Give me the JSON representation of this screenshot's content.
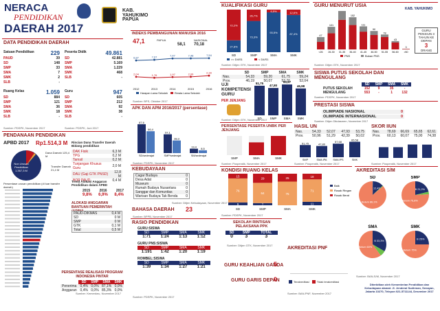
{
  "header": {
    "title1": "NERACA",
    "title2": "PENDIDIKAN",
    "title3": "DAERAH 2017",
    "region_name": "KAB. YAHUKIMO",
    "province": "PAPUA",
    "region_tag": "KAB. YAHUKIMO"
  },
  "data_pendidikan": {
    "title": "DATA PENDIDIKAN DAERAH",
    "satuan": {
      "label": "Satuan Pendidikan",
      "total": "229",
      "rows": [
        [
          "PAUD",
          "39"
        ],
        [
          "SD",
          "148"
        ],
        [
          "SMP",
          "33"
        ],
        [
          "SMA",
          "7"
        ],
        [
          "SMK",
          "2"
        ],
        [
          "SLB",
          "-"
        ]
      ]
    },
    "peserta": {
      "label": "Peserta Didik",
      "total": "49.861",
      "rows": [
        [
          "SD",
          "42.881"
        ],
        [
          "SMP",
          "5.169"
        ],
        [
          "SMA",
          "1.229"
        ],
        [
          "SMK",
          "468"
        ],
        [
          "SLB",
          "-"
        ]
      ]
    },
    "ruang": {
      "label": "Ruang Kelas",
      "total": "1.059",
      "rows": [
        [
          "SD",
          "884"
        ],
        [
          "SMP",
          "121"
        ],
        [
          "SMA",
          "36"
        ],
        [
          "SMK",
          "18"
        ],
        [
          "SLB",
          "-"
        ]
      ]
    },
    "guru": {
      "label": "Guru",
      "total": "947",
      "rows": [
        [
          "SD",
          "605"
        ],
        [
          "SMP",
          "212"
        ],
        [
          "SMA",
          "92"
        ],
        [
          "SMK",
          "38"
        ],
        [
          "SLB",
          "-"
        ]
      ]
    },
    "source1": "Sumber: PDSPK, November 2017",
    "source2": "Sumber: PDSPK, Juni 2017"
  },
  "pendanaan": {
    "title": "PENDANAAN PENDIDIKAN",
    "apbd_label": "APBD 2017",
    "apbd_value": "Rp1.514,3 M",
    "pie_labels": {
      "non_urusan": "Non Urusan Pendidikan 1.367,3 M",
      "dana_daerah": "Dana Daerah 125,4 M",
      "transfer": "Transfer Daerah 21,4 M"
    },
    "rincian_title": "Rincian Dana Transfer Daerah Bidang pendidikan",
    "rincian": [
      [
        "DAK Fisik",
        "6,3 M"
      ],
      [
        "TPG",
        "0,2 M"
      ],
      [
        "Tamsil",
        "0,2 M"
      ],
      [
        "Tunjangan Khusus Guru",
        "2,0 M"
      ],
      [
        "DAU (Gaji GTK PNSD)",
        "12,8 M"
      ],
      [
        "BOP PAUD",
        "0,4 M"
      ]
    ],
    "persentase_title": "Persentase urusan pendidikan (di luar transfer daerah)",
    "trend_title": "Trend Alokasi Anggaran Pendidikan dalam APBD",
    "trend_years": [
      "2015",
      "2016",
      "2017"
    ],
    "trend_values": [
      "9,8%",
      "6,9%",
      "8,4%"
    ],
    "alokasi_title": "ALOKASI ANGGARAN BANTUAN PEMERINTAH (APBN)",
    "alokasi": [
      [
        "PAUD-DIKMAS",
        "0,4 M"
      ],
      [
        "SD",
        "0 M"
      ],
      [
        "SMP",
        "0 M"
      ],
      [
        "GTK",
        "0,1 M"
      ],
      [
        "Total",
        "0,5 M"
      ]
    ],
    "pip_title": "PERSENTASE REALISASI PROGRAM INDONESIA PINTAR",
    "pip_header": [
      "SD",
      "SMP",
      "SMA",
      "SMK"
    ],
    "pip_rows": [
      [
        "Penerima",
        "0,4%",
        "0,0%",
        "87,1%",
        "0,0%"
      ],
      [
        "Anggaran",
        "0,4%",
        "0,0%",
        "85,3%",
        "0,0%"
      ]
    ],
    "source": "Sumber: Kemenkeu, November 2017"
  },
  "ipm": {
    "title": "INDEKS PEMBANGUNAN MANUSIA 2016",
    "value": "47,1",
    "papua_label": "PAPUA",
    "papua_value": "58,1",
    "nasional_label": "NASIONAL",
    "nasional_value": "70,18",
    "source": "Sumber: BPS, Oktober 2017"
  },
  "apk": {
    "title": "APK DAN APM 2016/2017 (persentase)",
    "source": "Sumber: PDSPK, November 2017"
  },
  "kebudayaan": {
    "title": "KEBUDAYAAN",
    "rows": [
      [
        "Cagar Budaya",
        "0"
      ],
      [
        "Desa Adat",
        "0"
      ],
      [
        "Museum",
        "0"
      ],
      [
        "Rumah Budaya Nusantara",
        "0"
      ],
      [
        "Sanggar dan Komunitas",
        "0"
      ],
      [
        "Warisan Budaya Tak Benda",
        "0"
      ]
    ],
    "source": "Sumber: Ditjen Kebudayaan, November 2017"
  },
  "bahasa": {
    "title": "BAHASA DAERAH",
    "value": "23",
    "source": "Sumber: BPPB, November 2017"
  },
  "rasio": {
    "title": "RASIO PENDIDIKAN",
    "guru_siswa": "GURU:SISWA",
    "header": [
      "SD",
      "SMP",
      "SMA",
      "SMK"
    ],
    "guru_siswa_vals": [
      "1:71",
      "1:24",
      "1:13",
      "1:12"
    ],
    "pns_title": "GURU PNS:SISWA",
    "pns_vals": [
      "1:191",
      "1:42",
      "1:20",
      "1:19"
    ],
    "rombel_title": "ROMBEL:SISWA",
    "rombel_vals": [
      "1:39",
      "1:34",
      "1:27",
      "1:21"
    ],
    "source": "Sumber: PDSPK, November 2017"
  },
  "kualifikasi": {
    "title": "KUALIFIKASI GURU",
    "source": "Sumber: Ditjen GTK, November 2017"
  },
  "usia": {
    "title": "GURU MENURUT USIA",
    "note_label": "GURU PENSIUN 3 TAHUN KE DEPAN",
    "note_value": "3",
    "note_unit": "ORANG",
    "source": "Sumber: Ditjen GTK, November 2017"
  },
  "un": {
    "title": "UJI KOMPETENSI GURU",
    "subtitle": "PER JENJANG",
    "header": [
      "SD",
      "SMP",
      "SMA",
      "SMK"
    ],
    "nas_label": "Nas.",
    "nas": [
      "54,33",
      "59,20",
      "61,75",
      "59,24"
    ],
    "prov_label": "Prov.",
    "prov": [
      "46,19",
      "50,07",
      "53,76",
      "52,04"
    ],
    "values": [
      "51,75",
      "47,80",
      "53,97",
      "46,98"
    ],
    "source": "Sumber: Ditjen GTK, November 2017"
  },
  "putus": {
    "title": "SISWA PUTUS SEKOLAH DAN MENGULANG",
    "header": [
      "SD",
      "SMP",
      "SMA",
      "SMK"
    ],
    "rows": [
      [
        "PUTUS SEKOLAH",
        "152",
        "9",
        "35",
        "-"
      ],
      [
        "MENGULANG",
        "553",
        "-",
        "1",
        "132"
      ]
    ],
    "source": "Sumber: PDSPK, November 2017"
  },
  "prestasi": {
    "title": "PRESTASI SISWA",
    "rows": [
      [
        "OLIMPIADE NASIONAL",
        "0"
      ],
      [
        "OLIMPIADE INTERNASIONAL",
        "0"
      ]
    ],
    "source": "Sumber: Ditjen Dikdasmen, November 2017"
  },
  "unbk": {
    "title": "PERSENTASE PESERTA UNBK PER JENJANG",
    "source": "Sumber: Puspendik, November 2017"
  },
  "hasil_un": {
    "title": "HASIL UN",
    "nas_label": "Nas.",
    "nas": [
      "54,33",
      "52,07",
      "47,93",
      "53,75"
    ],
    "prov_label": "Prov.",
    "prov": [
      "50,96",
      "51,29",
      "42,39",
      "50,02"
    ],
    "values": [
      "51,75",
      "47,80",
      "57,68",
      "65,58"
    ],
    "source": "Sumber: Puspendik, November 2017"
  },
  "skor_iiun": {
    "title": "SKOR IIUN",
    "nas_label": "Nas.",
    "nas": [
      "78,69",
      "66,69",
      "65,65",
      "62,61"
    ],
    "prov_label": "Prov.",
    "prov": [
      "60,13",
      "60,07",
      "75,00",
      "74,38"
    ],
    "source": "Sumber: Puspendik, November 2017"
  },
  "kondisi": {
    "title": "KONDISI RUANG KELAS",
    "source": "Sumber: PDSPK, November 2017"
  },
  "akreditasi": {
    "title": "AKREDITASI S/M",
    "source": "Sumber: BAN-S/M, November 2017"
  },
  "ppk": {
    "title": "SEKOLAH RINTISAN PELAKSANA PPK",
    "header": [
      "SD",
      "SMP",
      "TOTAL"
    ],
    "values": [
      "0",
      "3",
      "3"
    ],
    "source": "Sumber: Ditjen GTK, November 2017"
  },
  "akreditasi_pnf": {
    "title": "AKREDITASI PNF",
    "legend1": "Terakreditasi",
    "legend2": "Tidak terakreditasi",
    "source": "Sumber: BAN-PNF, November 2017"
  },
  "keahlian": {
    "title": "GURU KEAHLIAN GANDA",
    "value": "5"
  },
  "garis_depan": {
    "title": "GURU GARIS DEPAN",
    "value": "0"
  },
  "footer": "Diterbitkan oleh Kementerian Pendidikan dan Kebudayaan alamat: Jl. Jenderal Sudirman, Senayan, Jakarta 10270, Telepon 021-5711144, Desember 2017",
  "chart_data": [
    {
      "type": "line",
      "title": "INDEKS PEMBANGUNAN MANUSIA 2016",
      "categories": [
        "2012",
        "2013",
        "2014",
        "2015",
        "2016"
      ],
      "series": [
        {
          "name": "Harapan Lama Sekolah",
          "values": [
            6.87,
            7.07,
            7.47,
            7.48,
            7.54
          ]
        },
        {
          "name": "Rerata Lama Sekolah",
          "values": [
            2.04,
            1.76,
            1.97,
            2.06,
            2.39
          ]
        }
      ]
    },
    {
      "type": "bar",
      "title": "APK DAN APM 2016/2017",
      "categories": [
        "SD/sederajat",
        "SMP/sederajat",
        "SM/sederajat"
      ],
      "series": [
        {
          "name": "APK",
          "values": [
            87.6,
            57.1,
            13.4
          ]
        },
        {
          "name": "APM",
          "values": [
            66.4,
            38.3,
            8.5
          ]
        }
      ]
    },
    {
      "type": "bar",
      "title": "KUALIFIKASI GURU",
      "categories": [
        "SD",
        "SMP",
        "SMA",
        "SMK"
      ],
      "series": [
        {
          "name": ">= D4/S1",
          "values": [
            27.8,
            73.3,
            93.5,
            87.4
          ]
        },
        {
          "name": "< D4/S1",
          "values": [
            72.2,
            26.7,
            6.5,
            12.6
          ]
        }
      ]
    },
    {
      "type": "bar",
      "title": "GURU MENURUT USIA",
      "categories": [
        "<26",
        "26-30",
        "31-35",
        "36-40",
        "41-45",
        "46-50",
        "51-55",
        "56-60",
        ">60"
      ],
      "series": [
        {
          "name": "PNS",
          "values": [
            47,
            101,
            185,
            152,
            111,
            90,
            78,
            43,
            3
          ]
        },
        {
          "name": "Bukan PNS",
          "values": [
            30,
            40,
            55,
            49,
            33,
            25,
            15,
            9,
            1
          ]
        }
      ]
    },
    {
      "type": "bar",
      "title": "UJI KOMPETENSI GURU",
      "categories": [
        "SD",
        "SMP",
        "SMA",
        "SMK"
      ],
      "values": [
        51.75,
        47.8,
        53.97,
        46.98
      ]
    },
    {
      "type": "bar",
      "title": "HASIL UN",
      "categories": [
        "SMP",
        "SMA IPA",
        "SMA IPS",
        "SMK"
      ],
      "values": [
        51.75,
        47.8,
        57.68,
        65.58
      ]
    },
    {
      "type": "bar",
      "title": "PERSENTASE PESERTA UNBK PER JENJANG",
      "categories": [
        "SMP",
        "SMA",
        "SMK"
      ],
      "values": [
        0,
        66.5,
        100
      ]
    },
    {
      "type": "bar",
      "title": "KONDISI RUANG KELAS",
      "categories": [
        "SD",
        "SMP",
        "SMA",
        "SMK"
      ],
      "series": [
        {
          "name": "Baik",
          "values": [
            9,
            7,
            0,
            11
          ]
        },
        {
          "name": "Rusak Ringan",
          "values": [
            76,
            64,
            75,
            71
          ]
        },
        {
          "name": "Rusak Berat",
          "values": [
            15,
            29,
            25,
            18
          ]
        }
      ]
    },
    {
      "type": "pie",
      "title": "AKREDITASI S/M - SD",
      "categories": [
        "A",
        "B",
        "C",
        "Belum"
      ],
      "values": [
        0.7,
        12.4,
        0.8,
        86.1
      ]
    },
    {
      "type": "pie",
      "title": "AKREDITASI S/M - SMP",
      "categories": [
        "B",
        "C",
        "Belum"
      ],
      "values": [
        21.2,
        3,
        75.8
      ]
    },
    {
      "type": "pie",
      "title": "AKREDITASI S/M - SMA",
      "categories": [
        "B",
        "C",
        "Belum"
      ],
      "values": [
        33.3,
        6.7,
        60
      ]
    },
    {
      "type": "pie",
      "title": "AKREDITASI S/M - SMK",
      "categories": [
        "B",
        "Belum"
      ],
      "values": [
        25,
        75
      ]
    }
  ]
}
